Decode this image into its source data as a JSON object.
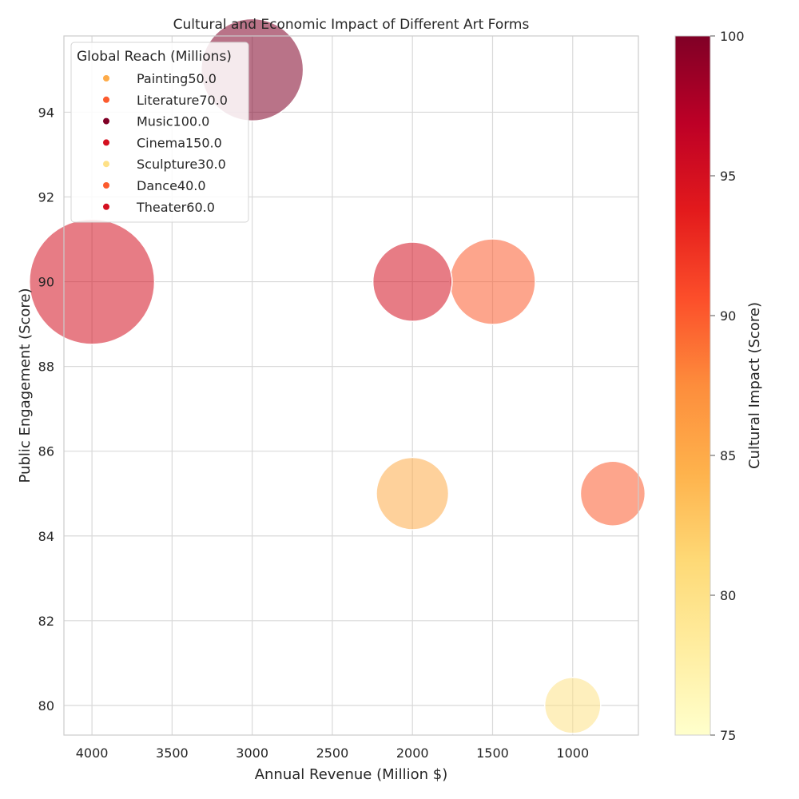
{
  "chart_data": {
    "type": "scatter",
    "title": "Cultural and Economic Impact of Different Art Forms",
    "xlabel": "Annual Revenue (Million $)",
    "ylabel": "Public Engagement (Score)",
    "x_inverted": true,
    "xlim": [
      4175,
      590
    ],
    "ylim": [
      79.3,
      95.8
    ],
    "x_ticks": [
      4000,
      3500,
      3000,
      2500,
      2000,
      1500,
      1000
    ],
    "y_ticks": [
      80,
      82,
      84,
      86,
      88,
      90,
      92,
      94
    ],
    "grid": true,
    "size_legend_title": "Global Reach (Millions)",
    "legend_placement": "top-left",
    "colorbar": {
      "label": "Cultural Impact (Score)",
      "min": 75,
      "max": 100,
      "ticks": [
        75,
        80,
        85,
        90,
        95,
        100
      ],
      "colormap": [
        "#ffffcc",
        "#ffeda0",
        "#fed976",
        "#feb24c",
        "#fd8d3c",
        "#fc4e2a",
        "#e31a1c",
        "#bd0026",
        "#800026"
      ]
    },
    "points": [
      {
        "name": "Painting",
        "legend_label": "Painting50.0",
        "x": 2000,
        "y": 85,
        "reach": 50,
        "impact": 85
      },
      {
        "name": "Literature",
        "legend_label": "Literature70.0",
        "x": 1500,
        "y": 90,
        "reach": 70,
        "impact": 90
      },
      {
        "name": "Music",
        "legend_label": "Music100.0",
        "x": 3000,
        "y": 95,
        "reach": 100,
        "impact": 100
      },
      {
        "name": "Cinema",
        "legend_label": "Cinema150.0",
        "x": 4000,
        "y": 90,
        "reach": 150,
        "impact": 95
      },
      {
        "name": "Sculpture",
        "legend_label": "Sculpture30.0",
        "x": 1000,
        "y": 80,
        "reach": 30,
        "impact": 80
      },
      {
        "name": "Dance",
        "legend_label": "Dance40.0",
        "x": 750,
        "y": 85,
        "reach": 40,
        "impact": 90
      },
      {
        "name": "Theater",
        "legend_label": "Theater60.0",
        "x": 2000,
        "y": 90,
        "reach": 60,
        "impact": 95
      }
    ]
  }
}
